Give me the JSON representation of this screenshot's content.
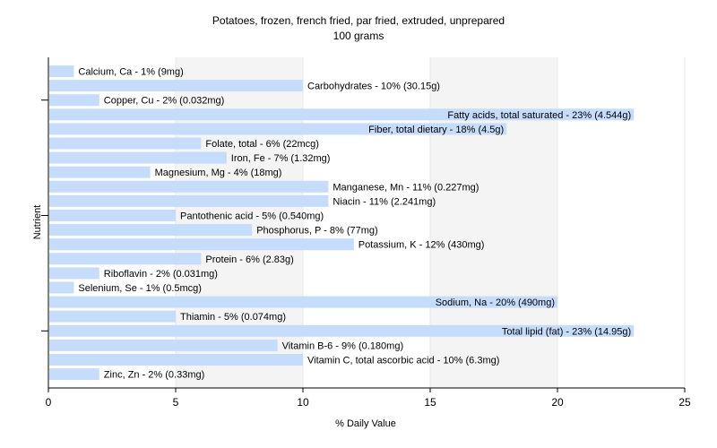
{
  "chart_data": {
    "type": "bar",
    "orientation": "horizontal",
    "title": "Potatoes, frozen, french fried, par fried, extruded, unprepared",
    "subtitle": "100 grams",
    "xlabel": "% Daily Value",
    "ylabel": "Nutrient",
    "xlim": [
      0,
      25
    ],
    "xticks": [
      0,
      5,
      10,
      15,
      20,
      25
    ],
    "grid": true,
    "bar_color": "#c6dcfb",
    "categories": [
      "Calcium, Ca",
      "Carbohydrates",
      "Copper, Cu",
      "Fatty acids, total saturated",
      "Fiber, total dietary",
      "Folate, total",
      "Iron, Fe",
      "Magnesium, Mg",
      "Manganese, Mn",
      "Niacin",
      "Pantothenic acid",
      "Phosphorus, P",
      "Potassium, K",
      "Protein",
      "Riboflavin",
      "Selenium, Se",
      "Sodium, Na",
      "Thiamin",
      "Total lipid (fat)",
      "Vitamin B-6",
      "Vitamin C, total ascorbic acid",
      "Zinc, Zn"
    ],
    "values": [
      1,
      10,
      2,
      23,
      18,
      6,
      7,
      4,
      11,
      11,
      5,
      8,
      12,
      6,
      2,
      1,
      20,
      5,
      23,
      9,
      10,
      2
    ],
    "labels": [
      "Calcium, Ca - 1% (9mg)",
      "Carbohydrates - 10% (30.15g)",
      "Copper, Cu - 2% (0.032mg)",
      "Fatty acids, total saturated - 23% (4.544g)",
      "Fiber, total dietary - 18% (4.5g)",
      "Folate, total - 6% (22mcg)",
      "Iron, Fe - 7% (1.32mg)",
      "Magnesium, Mg - 4% (18mg)",
      "Manganese, Mn - 11% (0.227mg)",
      "Niacin - 11% (2.241mg)",
      "Pantothenic acid - 5% (0.540mg)",
      "Phosphorus, P - 8% (77mg)",
      "Potassium, K - 12% (430mg)",
      "Protein - 6% (2.83g)",
      "Riboflavin - 2% (0.031mg)",
      "Selenium, Se - 1% (0.5mcg)",
      "Sodium, Na - 20% (490mg)",
      "Thiamin - 5% (0.074mg)",
      "Total lipid (fat) - 23% (14.95g)",
      "Vitamin B-6 - 9% (0.180mg)",
      "Vitamin C, total ascorbic acid - 10% (6.3mg)",
      "Zinc, Zn - 2% (0.33mg)"
    ]
  }
}
